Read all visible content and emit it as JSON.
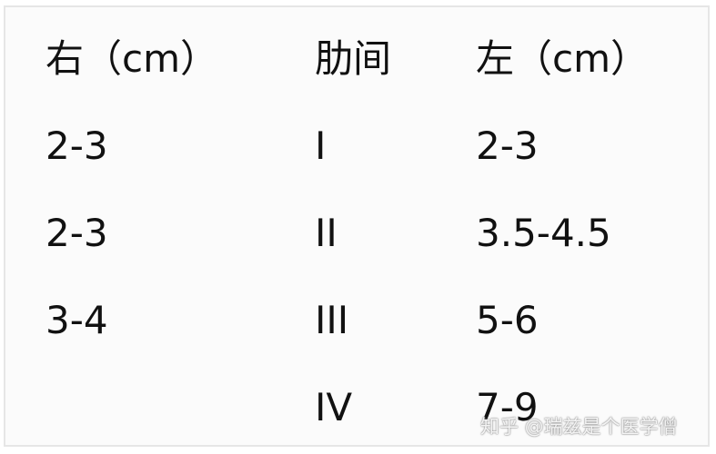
{
  "table": {
    "headers": [
      "右（cm）",
      "肋间",
      "左（cm）"
    ],
    "rows": [
      [
        "2-3",
        "I",
        "2-3"
      ],
      [
        "2-3",
        "II",
        "3.5-4.5"
      ],
      [
        "3-4",
        "III",
        "5-6"
      ],
      [
        "",
        "IV",
        "7-9"
      ]
    ]
  },
  "watermark": "知乎 @瑞兹是个医学僧"
}
